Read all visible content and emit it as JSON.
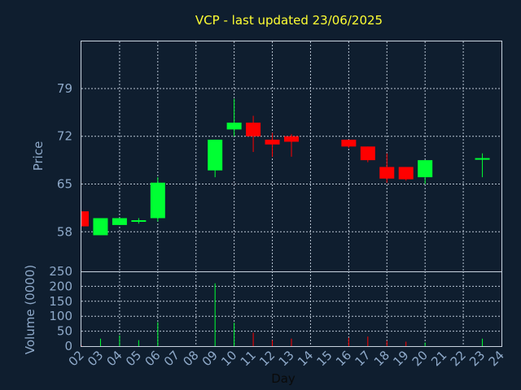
{
  "chart_data": [
    {
      "type": "candlestick",
      "title": "VCP - last updated 23/06/2025",
      "ylabel": "Price",
      "ylim": [
        52.2,
        85.9
      ],
      "yticks": [
        "58",
        "65",
        "72",
        "79"
      ],
      "grid": true,
      "colors": {
        "up": "#00ff33",
        "down": "#ff0000",
        "background": "#0f1e2f",
        "text": "#8ea9c9",
        "title": "#ffff33"
      },
      "candles": [
        {
          "day": "02",
          "open": 61.0,
          "high": 61.0,
          "low": 58.8,
          "close": 58.8
        },
        {
          "day": "03",
          "open": 57.5,
          "high": 60.0,
          "low": 57.5,
          "close": 60.0
        },
        {
          "day": "04",
          "open": 59.0,
          "high": 60.0,
          "low": 59.0,
          "close": 60.0
        },
        {
          "day": "05",
          "open": 59.5,
          "high": 60.0,
          "low": 59.2,
          "close": 59.7
        },
        {
          "day": "06",
          "open": 60.0,
          "high": 66.0,
          "low": 59.5,
          "close": 65.2
        },
        {
          "day": "09",
          "open": 67.0,
          "high": 71.5,
          "low": 66.0,
          "close": 71.5
        },
        {
          "day": "10",
          "open": 73.0,
          "high": 77.5,
          "low": 72.0,
          "close": 74.0
        },
        {
          "day": "11",
          "open": 74.0,
          "high": 75.0,
          "low": 69.7,
          "close": 72.0
        },
        {
          "day": "12",
          "open": 71.5,
          "high": 72.5,
          "low": 69.0,
          "close": 70.8
        },
        {
          "day": "13",
          "open": 72.0,
          "high": 72.3,
          "low": 69.0,
          "close": 71.2
        },
        {
          "day": "16",
          "open": 71.5,
          "high": 71.5,
          "low": 70.3,
          "close": 70.5
        },
        {
          "day": "17",
          "open": 70.5,
          "high": 70.5,
          "low": 68.2,
          "close": 68.5
        },
        {
          "day": "18",
          "open": 67.5,
          "high": 69.5,
          "low": 65.2,
          "close": 65.8
        },
        {
          "day": "19",
          "open": 67.5,
          "high": 67.5,
          "low": 65.5,
          "close": 65.7
        },
        {
          "day": "20",
          "open": 66.0,
          "high": 68.5,
          "low": 65.0,
          "close": 68.5
        },
        {
          "day": "23",
          "open": 68.6,
          "high": 69.5,
          "low": 66.0,
          "close": 68.8
        }
      ]
    },
    {
      "type": "bar",
      "ylabel": "Volume (0000)",
      "xlabel": "Day",
      "ylim": [
        0,
        250
      ],
      "yticks": [
        "0",
        "50",
        "100",
        "150",
        "200",
        "250"
      ],
      "xticks": [
        "02",
        "03",
        "04",
        "05",
        "06",
        "07",
        "08",
        "09",
        "10",
        "11",
        "12",
        "13",
        "14",
        "15",
        "16",
        "17",
        "18",
        "19",
        "20",
        "21",
        "22",
        "23",
        "24"
      ],
      "grid": true,
      "volumes": [
        {
          "day": "02",
          "value": 3,
          "direction": "down"
        },
        {
          "day": "03",
          "value": 25,
          "direction": "up"
        },
        {
          "day": "04",
          "value": 36,
          "direction": "up"
        },
        {
          "day": "05",
          "value": 20,
          "direction": "up"
        },
        {
          "day": "06",
          "value": 80,
          "direction": "up"
        },
        {
          "day": "09",
          "value": 210,
          "direction": "up"
        },
        {
          "day": "10",
          "value": 78,
          "direction": "up"
        },
        {
          "day": "11",
          "value": 45,
          "direction": "down"
        },
        {
          "day": "12",
          "value": 20,
          "direction": "down"
        },
        {
          "day": "13",
          "value": 25,
          "direction": "down"
        },
        {
          "day": "16",
          "value": 28,
          "direction": "down"
        },
        {
          "day": "17",
          "value": 32,
          "direction": "down"
        },
        {
          "day": "18",
          "value": 18,
          "direction": "down"
        },
        {
          "day": "19",
          "value": 15,
          "direction": "down"
        },
        {
          "day": "20",
          "value": 12,
          "direction": "up"
        },
        {
          "day": "23",
          "value": 25,
          "direction": "up"
        }
      ]
    }
  ]
}
